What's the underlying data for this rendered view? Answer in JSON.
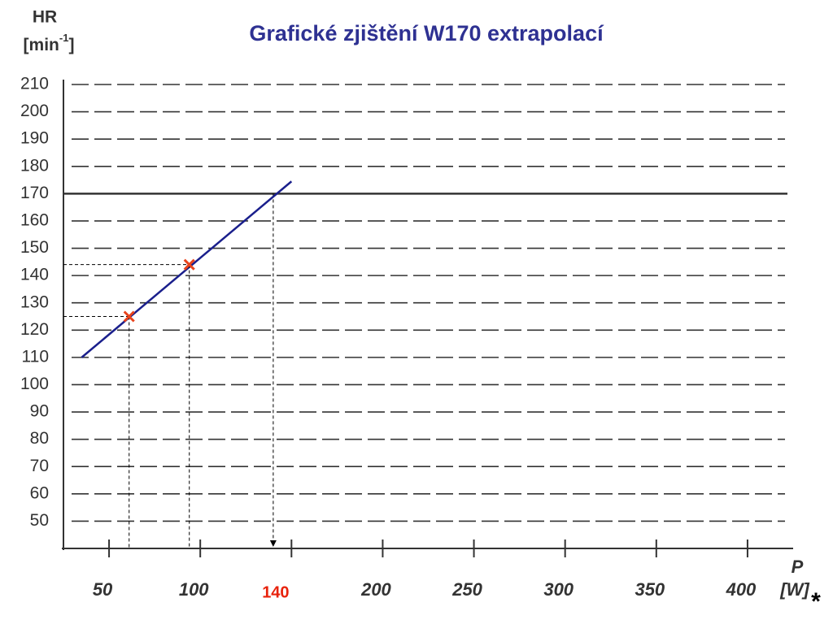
{
  "chart_data": {
    "type": "line",
    "title": "Grafické zjištění W170 extrapolací",
    "ylabel": "HR",
    "yunit": {
      "base": "[min",
      "sup": "-1",
      "end": "]"
    },
    "xlabel": "P",
    "xunit": "[W]",
    "footnote_mark": "*",
    "xlim": [
      25,
      425
    ],
    "ylim": [
      40,
      210
    ],
    "xticks": [
      50,
      100,
      200,
      250,
      300,
      350,
      400
    ],
    "xtick_marks": [
      50,
      100,
      150,
      200,
      250,
      300,
      350,
      400
    ],
    "yticks": [
      50,
      60,
      70,
      80,
      90,
      100,
      110,
      120,
      130,
      140,
      150,
      160,
      170,
      180,
      190,
      200,
      210
    ],
    "grid": true,
    "reference_line": 170,
    "line": {
      "color": "#1a1f8c",
      "x": [
        35,
        150
      ],
      "y": [
        110,
        174.5
      ]
    },
    "points": {
      "color": "#e8431c",
      "x": [
        61,
        94
      ],
      "y": [
        125,
        144
      ]
    },
    "annotation": {
      "value": 140,
      "color": "#e8220c"
    }
  }
}
